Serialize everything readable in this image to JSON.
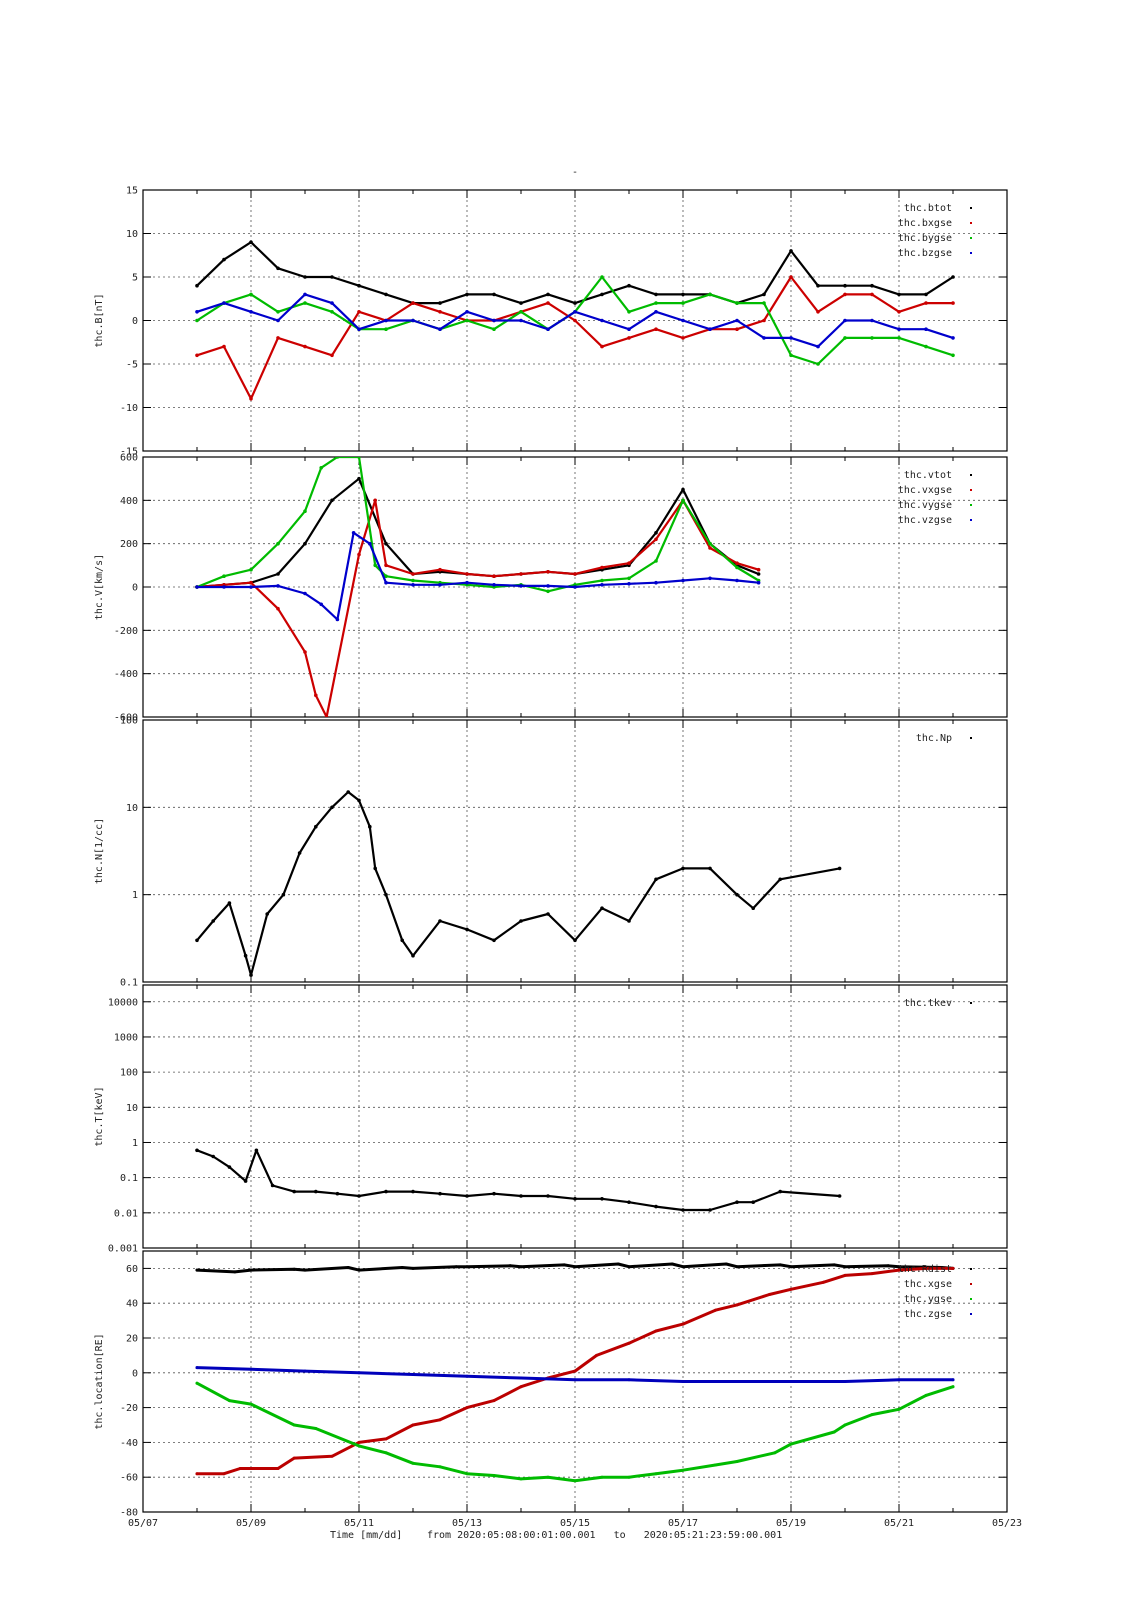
{
  "figure": {
    "title": "-",
    "x_axis": {
      "label": "Time [mm/dd]",
      "range_text": "from 2020:05:08:00:01:00.001   to   2020:05:21:23:59:00.001",
      "start_day": 7,
      "end_day": 23,
      "tick_labels": [
        "05/07",
        "05/09",
        "05/11",
        "05/13",
        "05/15",
        "05/17",
        "05/19",
        "05/21",
        "05/23"
      ]
    }
  },
  "chart_data": [
    {
      "type": "scatter",
      "ylabel": "thc.B[nT]",
      "ylim": [
        -15,
        15
      ],
      "yticks": [
        15,
        10,
        5,
        0,
        -5,
        -10,
        -15
      ],
      "ytick_labels": [
        "15",
        "10",
        "5",
        "0",
        "-5",
        "-10",
        "-15"
      ],
      "grid": true,
      "legend_position": "top-right",
      "series": [
        {
          "name": "thc.btot",
          "color": "#000000",
          "x": [
            8.0,
            8.5,
            9.0,
            9.5,
            10.0,
            10.5,
            11.0,
            11.5,
            12.0,
            12.5,
            13.0,
            13.5,
            14.0,
            14.5,
            15.0,
            15.5,
            16.0,
            16.5,
            17.0,
            17.5,
            18.0,
            18.5,
            19.0,
            19.5,
            20.0,
            20.5,
            21.0,
            21.5,
            22.0
          ],
          "y": [
            4,
            7,
            9,
            6,
            5,
            5,
            4,
            3,
            2,
            2,
            3,
            3,
            2,
            3,
            2,
            3,
            4,
            3,
            3,
            3,
            2,
            3,
            8,
            4,
            4,
            4,
            3,
            3,
            5
          ]
        },
        {
          "name": "thc.bxgse",
          "color": "#cc0000",
          "x": [
            8.0,
            8.5,
            9.0,
            9.5,
            10.0,
            10.5,
            11.0,
            11.5,
            12.0,
            12.5,
            13.0,
            13.5,
            14.0,
            14.5,
            15.0,
            15.5,
            16.0,
            16.5,
            17.0,
            17.5,
            18.0,
            18.5,
            19.0,
            19.5,
            20.0,
            20.5,
            21.0,
            21.5,
            22.0
          ],
          "y": [
            -4,
            -3,
            -9,
            -2,
            -3,
            -4,
            1,
            0,
            2,
            1,
            0,
            0,
            1,
            2,
            0,
            -3,
            -2,
            -1,
            -2,
            -1,
            -1,
            0,
            5,
            1,
            3,
            3,
            1,
            2,
            2
          ]
        },
        {
          "name": "thc.bygse",
          "color": "#00bb00",
          "x": [
            8.0,
            8.5,
            9.0,
            9.5,
            10.0,
            10.5,
            11.0,
            11.5,
            12.0,
            12.5,
            13.0,
            13.5,
            14.0,
            14.5,
            15.0,
            15.5,
            16.0,
            16.5,
            17.0,
            17.5,
            18.0,
            18.5,
            19.0,
            19.5,
            20.0,
            20.5,
            21.0,
            21.5,
            22.0
          ],
          "y": [
            0,
            2,
            3,
            1,
            2,
            1,
            -1,
            -1,
            0,
            -1,
            0,
            -1,
            1,
            -1,
            1,
            5,
            1,
            2,
            2,
            3,
            2,
            2,
            -4,
            -5,
            -2,
            -2,
            -2,
            -3,
            -4
          ]
        },
        {
          "name": "thc.bzgse",
          "color": "#0000cc",
          "x": [
            8.0,
            8.5,
            9.0,
            9.5,
            10.0,
            10.5,
            11.0,
            11.5,
            12.0,
            12.5,
            13.0,
            13.5,
            14.0,
            14.5,
            15.0,
            15.5,
            16.0,
            16.5,
            17.0,
            17.5,
            18.0,
            18.5,
            19.0,
            19.5,
            20.0,
            20.5,
            21.0,
            21.5,
            22.0
          ],
          "y": [
            1,
            2,
            1,
            0,
            3,
            2,
            -1,
            0,
            0,
            -1,
            1,
            0,
            0,
            -1,
            1,
            0,
            -1,
            1,
            0,
            -1,
            0,
            -2,
            -2,
            -3,
            0,
            0,
            -1,
            -1,
            -2
          ]
        }
      ]
    },
    {
      "type": "scatter",
      "ylabel": "thc.V[km/s]",
      "ylim": [
        -600,
        600
      ],
      "yticks": [
        600,
        400,
        200,
        0,
        -200,
        -400,
        -600
      ],
      "ytick_labels": [
        "600",
        "400",
        "200",
        "0",
        "-200",
        "-400",
        "-600"
      ],
      "grid": true,
      "legend_position": "top-right",
      "series": [
        {
          "name": "thc.vtot",
          "color": "#000000",
          "x": [
            8.0,
            8.5,
            9.0,
            9.5,
            10.0,
            10.5,
            11.0,
            11.5,
            12.0,
            12.5,
            13.0,
            13.5,
            14.0,
            14.5,
            15.0,
            15.5,
            16.0,
            16.5,
            17.0,
            17.5,
            18.0,
            18.4
          ],
          "y": [
            0,
            10,
            20,
            60,
            200,
            400,
            500,
            200,
            60,
            70,
            60,
            50,
            60,
            70,
            60,
            80,
            100,
            250,
            450,
            200,
            100,
            60
          ]
        },
        {
          "name": "thc.vxgse",
          "color": "#cc0000",
          "x": [
            8.0,
            8.5,
            9.0,
            9.5,
            10.0,
            10.2,
            10.4,
            11.0,
            11.3,
            11.5,
            12.0,
            12.5,
            13.0,
            13.5,
            14.0,
            14.5,
            15.0,
            15.5,
            16.0,
            16.5,
            17.0,
            17.5,
            18.0,
            18.4
          ],
          "y": [
            0,
            10,
            20,
            -100,
            -300,
            -500,
            -600,
            150,
            400,
            100,
            60,
            80,
            60,
            50,
            60,
            70,
            60,
            90,
            110,
            220,
            400,
            180,
            110,
            80
          ]
        },
        {
          "name": "thc.vygse",
          "color": "#00bb00",
          "x": [
            8.0,
            8.5,
            9.0,
            9.5,
            10.0,
            10.3,
            10.6,
            11.0,
            11.3,
            11.5,
            12.0,
            12.5,
            13.0,
            13.5,
            14.0,
            14.5,
            15.0,
            15.5,
            16.0,
            16.5,
            17.0,
            17.5,
            18.0,
            18.4
          ],
          "y": [
            0,
            50,
            80,
            200,
            350,
            550,
            600,
            600,
            100,
            50,
            30,
            20,
            10,
            0,
            10,
            -20,
            10,
            30,
            40,
            120,
            400,
            200,
            90,
            30
          ]
        },
        {
          "name": "thc.vzgse",
          "color": "#0000cc",
          "x": [
            8.0,
            8.5,
            9.0,
            9.5,
            10.0,
            10.3,
            10.6,
            10.9,
            11.2,
            11.5,
            12.0,
            12.5,
            13.0,
            13.5,
            14.0,
            14.5,
            15.0,
            15.5,
            16.0,
            16.5,
            17.0,
            17.5,
            18.0,
            18.4
          ],
          "y": [
            0,
            0,
            0,
            5,
            -30,
            -80,
            -150,
            250,
            200,
            20,
            10,
            10,
            20,
            10,
            5,
            5,
            0,
            10,
            15,
            20,
            30,
            40,
            30,
            20
          ]
        }
      ]
    },
    {
      "type": "scatter",
      "ylabel": "thc.N[1/cc]",
      "yscale": "log",
      "ylim": [
        0.1,
        100
      ],
      "yticks": [
        100,
        10,
        1,
        0.1
      ],
      "ytick_labels": [
        "100",
        "10",
        "1",
        "0.1"
      ],
      "grid": true,
      "legend_position": "top-right",
      "series": [
        {
          "name": "thc.Np",
          "color": "#000000",
          "x": [
            8.0,
            8.3,
            8.6,
            8.9,
            9.0,
            9.3,
            9.6,
            9.9,
            10.2,
            10.5,
            10.8,
            11.0,
            11.2,
            11.3,
            11.5,
            11.8,
            12.0,
            12.5,
            13.0,
            13.5,
            14.0,
            14.5,
            15.0,
            15.5,
            16.0,
            16.5,
            17.0,
            17.5,
            18.0,
            18.3,
            18.8,
            19.9
          ],
          "y": [
            0.3,
            0.5,
            0.8,
            0.2,
            0.12,
            0.6,
            1.0,
            3.0,
            6.0,
            10.0,
            15.0,
            12.0,
            6.0,
            2.0,
            1.0,
            0.3,
            0.2,
            0.5,
            0.4,
            0.3,
            0.5,
            0.6,
            0.3,
            0.7,
            0.5,
            1.5,
            2.0,
            2.0,
            1.0,
            0.7,
            1.5,
            2.0
          ]
        }
      ]
    },
    {
      "type": "scatter",
      "ylabel": "thc.T[keV]",
      "yscale": "log",
      "ylim": [
        0.001,
        30000
      ],
      "yticks": [
        10000,
        1000,
        100,
        10,
        1,
        0.1,
        0.01,
        0.001
      ],
      "ytick_labels": [
        "10000",
        "1000",
        "100",
        "10",
        "1",
        "0.1",
        "0.01",
        "0.001"
      ],
      "grid": true,
      "legend_position": "top-right",
      "series": [
        {
          "name": "thc.tkev",
          "color": "#000000",
          "x": [
            8.0,
            8.3,
            8.6,
            8.9,
            9.1,
            9.4,
            9.8,
            10.2,
            10.6,
            11.0,
            11.5,
            12.0,
            12.5,
            13.0,
            13.5,
            14.0,
            14.5,
            15.0,
            15.5,
            16.0,
            16.5,
            17.0,
            17.5,
            18.0,
            18.3,
            18.8,
            19.9
          ],
          "y": [
            0.6,
            0.4,
            0.2,
            0.08,
            0.6,
            0.06,
            0.04,
            0.04,
            0.035,
            0.03,
            0.04,
            0.04,
            0.035,
            0.03,
            0.035,
            0.03,
            0.03,
            0.025,
            0.025,
            0.02,
            0.015,
            0.012,
            0.012,
            0.02,
            0.02,
            0.04,
            0.03
          ]
        }
      ]
    },
    {
      "type": "line",
      "ylabel": "thc.location[RE]",
      "ylim": [
        -80,
        70
      ],
      "yticks": [
        60,
        40,
        20,
        0,
        -20,
        -40,
        -60,
        -80
      ],
      "ytick_labels": [
        "60",
        "40",
        "20",
        "0",
        "-20",
        "-40",
        "-60",
        "-80"
      ],
      "grid": true,
      "legend_position": "top-right",
      "series": [
        {
          "name": "thc.Rdist",
          "color": "#000000",
          "x": [
            8.0,
            8.7,
            9.0,
            9.8,
            10.0,
            10.8,
            11.0,
            11.8,
            12.0,
            12.8,
            13.0,
            13.8,
            14.0,
            14.8,
            15.0,
            15.8,
            16.0,
            16.8,
            17.0,
            17.8,
            18.0,
            18.8,
            19.0,
            19.8,
            20.0,
            20.8,
            21.0,
            21.8,
            22.0
          ],
          "y": [
            59,
            58,
            59,
            59.5,
            59,
            60.5,
            59,
            60.5,
            60,
            61,
            61,
            61.5,
            61,
            62,
            61,
            62.5,
            61,
            62.5,
            61,
            62.5,
            61,
            62,
            61,
            62,
            61,
            61.5,
            61,
            60.5,
            60
          ]
        },
        {
          "name": "thc.xgse",
          "color": "#bb0000",
          "x": [
            8.0,
            8.5,
            8.8,
            9.5,
            9.8,
            10.5,
            11.0,
            11.5,
            12.0,
            12.5,
            13.0,
            13.5,
            14.0,
            14.5,
            15.0,
            15.4,
            16.0,
            16.5,
            17.0,
            17.6,
            18.0,
            18.6,
            19.0,
            19.6,
            20.0,
            20.5,
            21.0,
            21.5,
            22.0
          ],
          "y": [
            -58,
            -58,
            -55,
            -55,
            -49,
            -48,
            -40,
            -38,
            -30,
            -27,
            -20,
            -16,
            -8,
            -3,
            1,
            10,
            17,
            24,
            28,
            36,
            39,
            45,
            48,
            52,
            56,
            57,
            59,
            60,
            60
          ]
        },
        {
          "name": "thc.ygse",
          "color": "#00bb00",
          "x": [
            8.0,
            8.6,
            9.0,
            9.8,
            10.2,
            11.0,
            11.5,
            12.0,
            12.5,
            13.0,
            13.5,
            14.0,
            14.5,
            15.0,
            15.5,
            16.0,
            16.5,
            17.0,
            17.6,
            18.0,
            18.7,
            19.0,
            19.8,
            20.0,
            20.5,
            21.0,
            21.5,
            22.0
          ],
          "y": [
            -6,
            -16,
            -18,
            -30,
            -32,
            -42,
            -46,
            -52,
            -54,
            -58,
            -59,
            -61,
            -60,
            -62,
            -60,
            -60,
            -58,
            -56,
            -53,
            -51,
            -46,
            -41,
            -34,
            -30,
            -24,
            -21,
            -13,
            -8
          ]
        },
        {
          "name": "thc.zgse",
          "color": "#0000bb",
          "x": [
            8.0,
            9.0,
            10.0,
            11.0,
            12.0,
            13.0,
            14.0,
            15.0,
            16.0,
            17.0,
            18.0,
            19.0,
            20.0,
            21.0,
            22.0
          ],
          "y": [
            3,
            2,
            1,
            0,
            -1,
            -2,
            -3,
            -4,
            -4,
            -5,
            -5,
            -5,
            -5,
            -4,
            -4
          ]
        }
      ]
    }
  ]
}
